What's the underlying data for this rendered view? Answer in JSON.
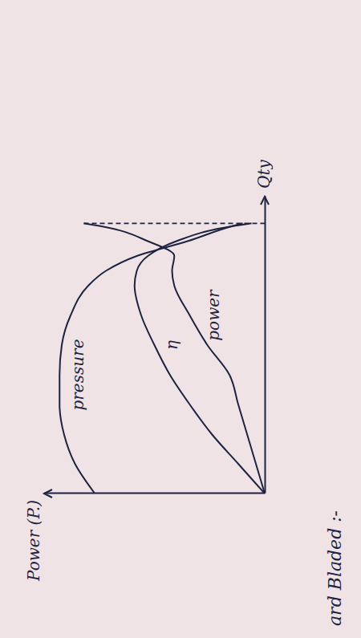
{
  "chart_data": {
    "type": "line",
    "x": [
      0,
      1,
      2,
      3,
      4,
      5,
      6,
      7,
      7.5,
      8,
      8.5,
      9,
      9.1
    ],
    "xlim": [
      0,
      10
    ],
    "ylim": [
      0,
      10
    ],
    "tick_labels": false,
    "x_label": "Qty",
    "y_label": "Power (P.)",
    "annotations": [
      "ard Bladed :-"
    ],
    "color": "#1f2340",
    "series": [
      {
        "name": "pressure",
        "values": [
          7.7,
          8.6,
          9.1,
          9.3,
          9.3,
          9.2,
          8.8,
          8.0,
          7.2,
          5.8,
          3.5,
          1.5,
          1.0
        ]
      },
      {
        "name": "power",
        "values": [
          0,
          0.4,
          0.8,
          1.2,
          1.6,
          2.6,
          3.4,
          4.1,
          4.2,
          4.1,
          5.3,
          7.4,
          8.2
        ]
      },
      {
        "name": "η",
        "values": [
          0,
          1.2,
          2.4,
          3.4,
          4.3,
          5.0,
          5.6,
          5.9,
          5.8,
          5.3,
          4.0,
          1.5,
          0.6
        ]
      }
    ]
  }
}
